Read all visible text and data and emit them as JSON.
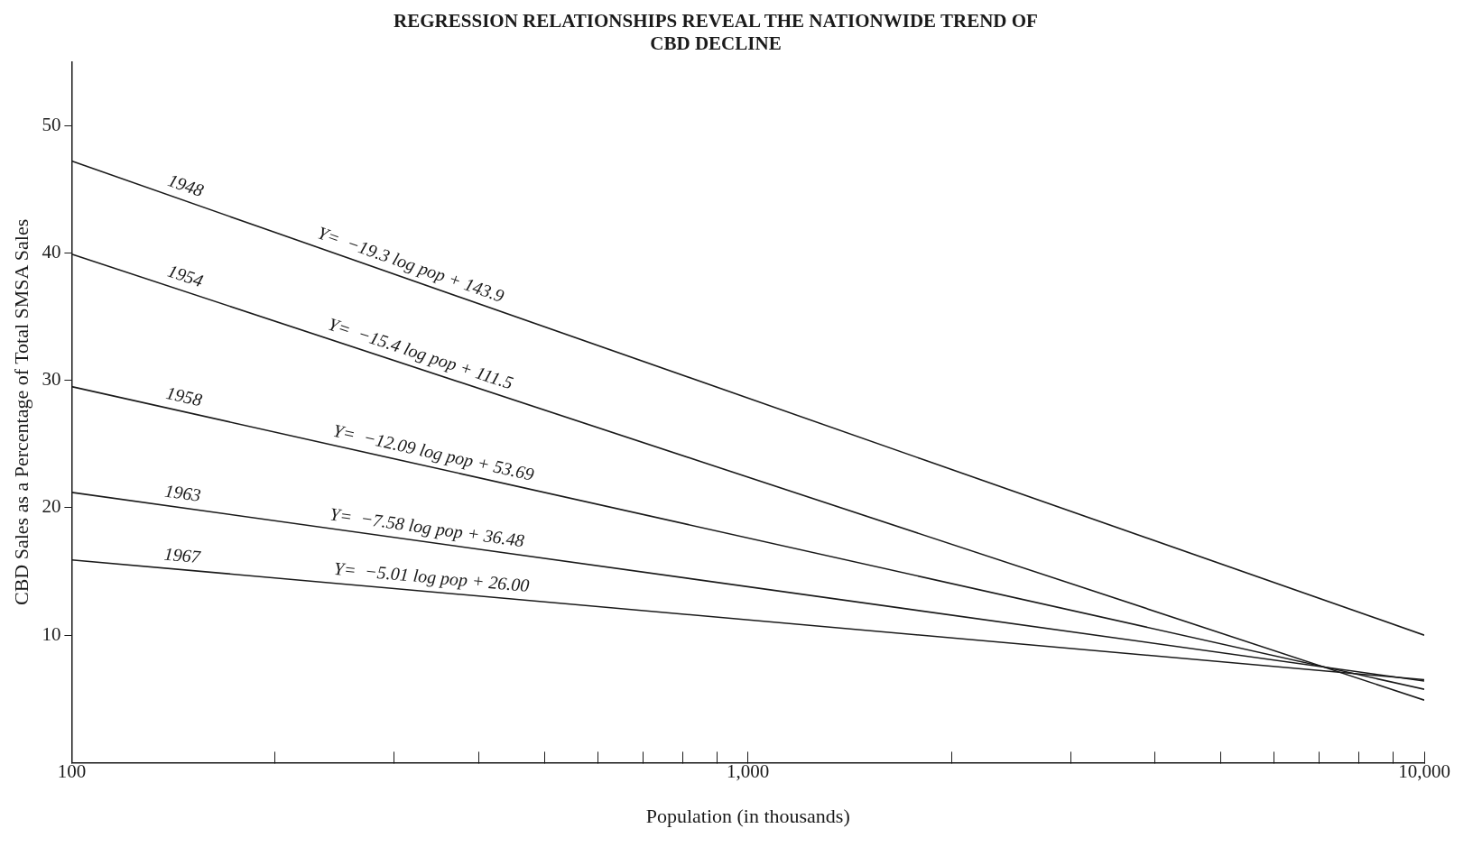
{
  "chart_data": {
    "type": "line",
    "title": [
      "REGRESSION RELATIONSHIPS REVEAL THE NATIONWIDE TREND OF",
      "CBD DECLINE"
    ],
    "xlabel": "Population (in thousands)",
    "ylabel": "CBD Sales as a Percentage of Total SMSA Sales",
    "log": "x",
    "x": [
      100,
      10000
    ],
    "series": [
      {
        "color": "#1a1a1a",
        "values": [
          47.2,
          10.0
        ]
      },
      {
        "color": "#1a1a1a",
        "values": [
          39.9,
          4.9
        ]
      },
      {
        "color": "#1a1a1a",
        "values": [
          29.5,
          5.75
        ]
      },
      {
        "color": "#1a1a1a",
        "values": [
          21.2,
          6.4
        ]
      },
      {
        "color": "#1a1a1a",
        "values": [
          15.9,
          6.5
        ]
      }
    ],
    "xlim": [
      100,
      10000
    ],
    "xticks": [
      {
        "value": 100,
        "label": "100"
      },
      {
        "value": 200,
        "label": null
      },
      {
        "value": 300,
        "label": null
      },
      {
        "value": 400,
        "label": null
      },
      {
        "value": 500,
        "label": null
      },
      {
        "value": 600,
        "label": null
      },
      {
        "value": 700,
        "label": null
      },
      {
        "value": 800,
        "label": null
      },
      {
        "value": 900,
        "label": null
      },
      {
        "value": 1000,
        "label": "1,000"
      },
      {
        "value": 2000,
        "label": null
      },
      {
        "value": 3000,
        "label": null
      },
      {
        "value": 4000,
        "label": null
      },
      {
        "value": 5000,
        "label": null
      },
      {
        "value": 6000,
        "label": null
      },
      {
        "value": 7000,
        "label": null
      },
      {
        "value": 8000,
        "label": null
      },
      {
        "value": 9000,
        "label": null
      },
      {
        "value": 10000,
        "label": "10,000"
      }
    ],
    "ylim": [
      0,
      55
    ],
    "yticks": [
      10,
      20,
      30,
      40,
      50
    ],
    "grid": false,
    "legend": false,
    "marker": "none",
    "line_style": "solid",
    "annotations": [
      {
        "text": "1948",
        "x": 145,
        "y": 44.2
      },
      {
        "text": "Y=  −19.3 log pop + 143.9",
        "x": 312,
        "y": 38.0
      },
      {
        "text": "1954",
        "x": 145,
        "y": 37.1
      },
      {
        "text": "Y=  −15.4 log pop + 111.5",
        "x": 323,
        "y": 31.0
      },
      {
        "text": "1958",
        "x": 145,
        "y": 27.6
      },
      {
        "text": "Y=  −12.09 log pop + 53.69",
        "x": 339,
        "y": 23.2
      },
      {
        "text": "1963",
        "x": 145,
        "y": 20.0
      },
      {
        "text": "Y=  −7.58 log pop + 36.48",
        "x": 333,
        "y": 17.3
      },
      {
        "text": "1967",
        "x": 145,
        "y": 15.1
      },
      {
        "text": "Y=  −5.01 log pop + 26.00",
        "x": 339,
        "y": 13.4
      }
    ]
  }
}
